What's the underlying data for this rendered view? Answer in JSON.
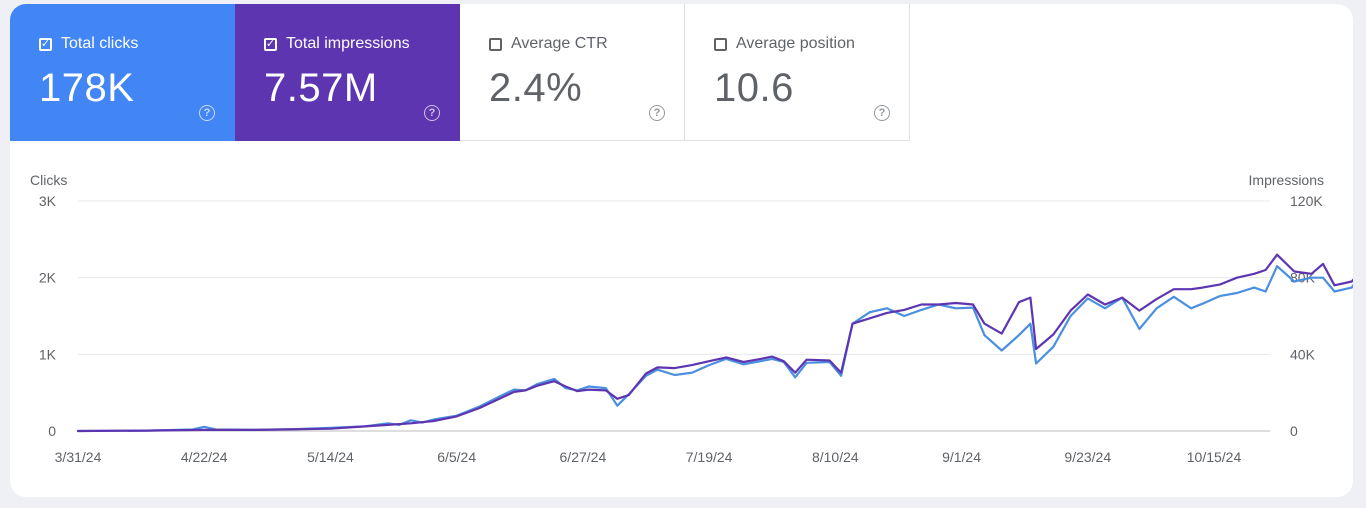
{
  "metrics": [
    {
      "label": "Total clicks",
      "value": "178K",
      "checked": true,
      "color": "#4285f4"
    },
    {
      "label": "Total impressions",
      "value": "7.57M",
      "checked": true,
      "color": "#5e35b1"
    },
    {
      "label": "Average CTR",
      "value": "2.4%",
      "checked": false
    },
    {
      "label": "Average position",
      "value": "10.6",
      "checked": false
    }
  ],
  "icons": {
    "checkbox": "checkbox-checked-icon",
    "help": "help-circle-icon"
  },
  "chart_data": {
    "type": "line",
    "left_axis": {
      "title": "Clicks",
      "ticks": [
        "0",
        "1K",
        "2K",
        "3K"
      ],
      "range": [
        0,
        3000
      ]
    },
    "right_axis": {
      "title": "Impressions",
      "ticks": [
        "0",
        "40K",
        "80K",
        "120K"
      ],
      "range": [
        0,
        120000
      ]
    },
    "x_ticks": [
      "3/31/24",
      "4/22/24",
      "5/14/24",
      "6/5/24",
      "6/27/24",
      "7/19/24",
      "8/10/24",
      "9/1/24",
      "9/23/24",
      "10/15/24"
    ],
    "grid": true,
    "series": [
      {
        "color": "#4a8fe0",
        "axis": "left",
        "points": [
          [
            "3/31/24",
            0
          ],
          [
            "4/12/24",
            5
          ],
          [
            "4/20/24",
            20
          ],
          [
            "4/22/24",
            55
          ],
          [
            "4/24/24",
            20
          ],
          [
            "5/1/24",
            15
          ],
          [
            "5/8/24",
            25
          ],
          [
            "5/14/24",
            40
          ],
          [
            "5/20/24",
            60
          ],
          [
            "5/24/24",
            100
          ],
          [
            "5/26/24",
            80
          ],
          [
            "5/28/24",
            140
          ],
          [
            "5/30/24",
            110
          ],
          [
            "6/1/24",
            150
          ],
          [
            "6/5/24",
            200
          ],
          [
            "6/9/24",
            320
          ],
          [
            "6/13/24",
            470
          ],
          [
            "6/15/24",
            540
          ],
          [
            "6/17/24",
            530
          ],
          [
            "6/19/24",
            610
          ],
          [
            "6/22/24",
            680
          ],
          [
            "6/24/24",
            560
          ],
          [
            "6/26/24",
            530
          ],
          [
            "6/28/24",
            580
          ],
          [
            "7/1/24",
            560
          ],
          [
            "7/3/24",
            330
          ],
          [
            "7/5/24",
            480
          ],
          [
            "7/8/24",
            720
          ],
          [
            "7/10/24",
            800
          ],
          [
            "7/13/24",
            730
          ],
          [
            "7/16/24",
            760
          ],
          [
            "7/19/24",
            860
          ],
          [
            "7/22/24",
            940
          ],
          [
            "7/25/24",
            870
          ],
          [
            "7/28/24",
            910
          ],
          [
            "7/30/24",
            940
          ],
          [
            "8/1/24",
            900
          ],
          [
            "8/3/24",
            700
          ],
          [
            "8/5/24",
            890
          ],
          [
            "8/9/24",
            900
          ],
          [
            "8/11/24",
            720
          ],
          [
            "8/13/24",
            1400
          ],
          [
            "8/16/24",
            1550
          ],
          [
            "8/19/24",
            1600
          ],
          [
            "8/22/24",
            1500
          ],
          [
            "8/25/24",
            1580
          ],
          [
            "8/28/24",
            1650
          ],
          [
            "8/31/24",
            1600
          ],
          [
            "9/3/24",
            1610
          ],
          [
            "9/5/24",
            1250
          ],
          [
            "9/8/24",
            1050
          ],
          [
            "9/11/24",
            1250
          ],
          [
            "9/13/24",
            1400
          ],
          [
            "9/14/24",
            880
          ],
          [
            "9/17/24",
            1100
          ],
          [
            "9/20/24",
            1500
          ],
          [
            "9/23/24",
            1730
          ],
          [
            "9/26/24",
            1600
          ],
          [
            "9/29/24",
            1740
          ],
          [
            "10/2/24",
            1330
          ],
          [
            "10/5/24",
            1600
          ],
          [
            "10/8/24",
            1750
          ],
          [
            "10/11/24",
            1600
          ],
          [
            "10/13/24",
            1660
          ],
          [
            "10/16/24",
            1760
          ],
          [
            "10/19/24",
            1800
          ],
          [
            "10/22/24",
            1870
          ],
          [
            "10/24/24",
            1820
          ],
          [
            "10/26/24",
            2150
          ],
          [
            "10/29/24",
            1950
          ],
          [
            "11/1/24",
            2000
          ],
          [
            "11/3/24",
            2000
          ],
          [
            "11/5/24",
            1820
          ],
          [
            "11/8/24",
            1870
          ],
          [
            "11/11/24",
            2180
          ],
          [
            "11/13/24",
            2000
          ],
          [
            "11/16/24",
            2000
          ],
          [
            "11/18/24",
            2400
          ],
          [
            "11/19/24",
            2380
          ]
        ]
      },
      {
        "color": "#5e35b1",
        "axis": "left",
        "points": [
          [
            "3/31/24",
            0
          ],
          [
            "4/12/24",
            5
          ],
          [
            "4/22/24",
            15
          ],
          [
            "5/1/24",
            15
          ],
          [
            "5/14/24",
            30
          ],
          [
            "5/20/24",
            60
          ],
          [
            "5/24/24",
            80
          ],
          [
            "5/28/24",
            100
          ],
          [
            "6/1/24",
            130
          ],
          [
            "6/5/24",
            190
          ],
          [
            "6/9/24",
            300
          ],
          [
            "6/13/24",
            440
          ],
          [
            "6/15/24",
            510
          ],
          [
            "6/17/24",
            530
          ],
          [
            "6/19/24",
            590
          ],
          [
            "6/22/24",
            650
          ],
          [
            "6/24/24",
            580
          ],
          [
            "6/26/24",
            520
          ],
          [
            "6/28/24",
            540
          ],
          [
            "7/1/24",
            530
          ],
          [
            "7/3/24",
            420
          ],
          [
            "7/5/24",
            470
          ],
          [
            "7/8/24",
            750
          ],
          [
            "7/10/24",
            830
          ],
          [
            "7/13/24",
            820
          ],
          [
            "7/16/24",
            860
          ],
          [
            "7/19/24",
            910
          ],
          [
            "7/22/24",
            960
          ],
          [
            "7/25/24",
            900
          ],
          [
            "7/28/24",
            940
          ],
          [
            "7/30/24",
            970
          ],
          [
            "8/1/24",
            910
          ],
          [
            "8/3/24",
            760
          ],
          [
            "8/5/24",
            930
          ],
          [
            "8/9/24",
            920
          ],
          [
            "8/11/24",
            760
          ],
          [
            "8/13/24",
            1400
          ],
          [
            "8/16/24",
            1470
          ],
          [
            "8/19/24",
            1540
          ],
          [
            "8/22/24",
            1580
          ],
          [
            "8/25/24",
            1650
          ],
          [
            "8/28/24",
            1650
          ],
          [
            "8/31/24",
            1670
          ],
          [
            "9/3/24",
            1650
          ],
          [
            "9/5/24",
            1400
          ],
          [
            "9/8/24",
            1270
          ],
          [
            "9/11/24",
            1680
          ],
          [
            "9/13/24",
            1740
          ],
          [
            "9/14/24",
            1070
          ],
          [
            "9/17/24",
            1260
          ],
          [
            "9/20/24",
            1570
          ],
          [
            "9/23/24",
            1780
          ],
          [
            "9/26/24",
            1650
          ],
          [
            "9/29/24",
            1740
          ],
          [
            "10/2/24",
            1570
          ],
          [
            "10/5/24",
            1720
          ],
          [
            "10/8/24",
            1850
          ],
          [
            "10/11/24",
            1850
          ],
          [
            "10/13/24",
            1870
          ],
          [
            "10/16/24",
            1910
          ],
          [
            "10/19/24",
            2000
          ],
          [
            "10/22/24",
            2050
          ],
          [
            "10/24/24",
            2100
          ],
          [
            "10/26/24",
            2300
          ],
          [
            "10/29/24",
            2080
          ],
          [
            "11/1/24",
            2050
          ],
          [
            "11/3/24",
            2180
          ],
          [
            "11/5/24",
            1900
          ],
          [
            "11/8/24",
            1950
          ],
          [
            "11/11/24",
            2200
          ],
          [
            "11/13/24",
            2050
          ],
          [
            "11/16/24",
            2150
          ],
          [
            "11/18/24",
            2450
          ],
          [
            "11/19/24",
            2480
          ]
        ]
      }
    ]
  }
}
